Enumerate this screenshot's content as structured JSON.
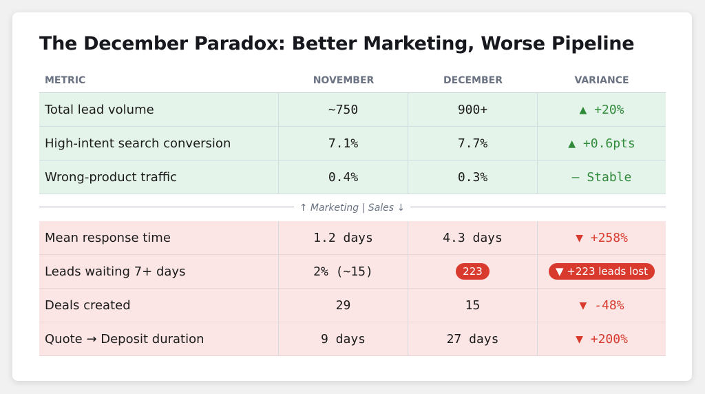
{
  "title": "The December Paradox: Better Marketing, Worse Pipeline",
  "headers": [
    "METRIC",
    "NOVEMBER",
    "DECEMBER",
    "VARIANCE"
  ],
  "divider_label": "↑ Marketing | Sales ↓",
  "marketing_rows": [
    {
      "metric": "Total lead volume",
      "nov": "~750",
      "dec": "900+",
      "variance": "▲ +20%",
      "trend": "up"
    },
    {
      "metric": "High-intent search conversion",
      "nov": "7.1%",
      "dec": "7.7%",
      "variance": "▲ +0.6pts",
      "trend": "up"
    },
    {
      "metric": "Wrong-product traffic",
      "nov": "0.4%",
      "dec": "0.3%",
      "variance": "— Stable",
      "trend": "flat"
    }
  ],
  "sales_rows": [
    {
      "metric": "Mean response time",
      "nov": "1.2 days",
      "dec": "4.3 days",
      "variance": "▼ +258%",
      "trend": "down"
    },
    {
      "metric": "Leads waiting 7+ days",
      "nov": "2% (~15)",
      "dec": "223",
      "variance": "▼ +223 leads lost",
      "trend": "down",
      "highlight": true
    },
    {
      "metric": "Deals created",
      "nov": "29",
      "dec": "15",
      "variance": "▼ -48%",
      "trend": "down"
    },
    {
      "metric": "Quote → Deposit duration",
      "nov": "9 days",
      "dec": "27 days",
      "variance": "▼ +200%",
      "trend": "down"
    }
  ],
  "colors": {
    "up": "#2f8a3a",
    "down": "#d93a2e",
    "green_bg": "#e5f4ea",
    "red_bg": "#fce6e5"
  }
}
